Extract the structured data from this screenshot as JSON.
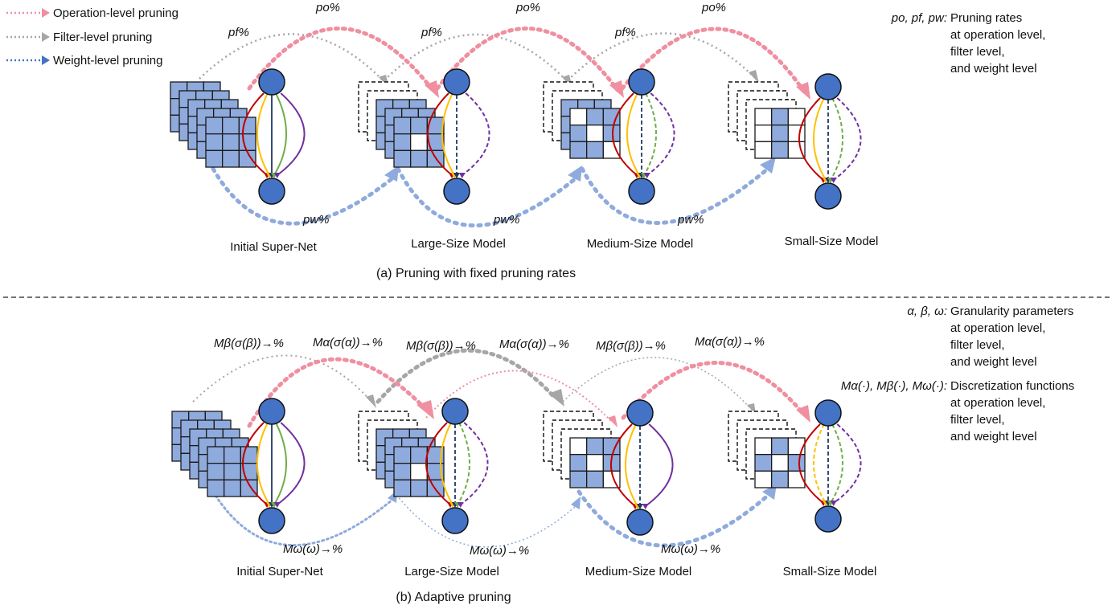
{
  "legend": [
    {
      "label": "Operation-level pruning",
      "color": "#ef8fa0"
    },
    {
      "label": "Filter-level pruning",
      "color": "#a6a6a6"
    },
    {
      "label": "Weight-level pruning",
      "color": "#4472c4"
    }
  ],
  "colors": {
    "cell": "#8faadc",
    "cell_border": "#1f1f1f",
    "node": "#4472c4",
    "op_arrow": "#ef8fa0",
    "filter_arrow": "#a6a6a6",
    "weight_arrow": "#8faadc",
    "edge_red": "#c00000",
    "edge_yellow": "#ffc000",
    "edge_navy": "#1f3864",
    "edge_green": "#70ad47",
    "edge_purple": "#7030a0"
  },
  "panel_a": {
    "caption": "(a) Pruning with fixed pruning rates",
    "models": [
      "Initial Super-Net",
      "Large-Size Model",
      "Medium-Size Model",
      "Small-Size Model"
    ],
    "filter_label": "pf%",
    "op_label": "po%",
    "weight_label": "pw%",
    "side_note": {
      "symbols": "po, pf, pw:",
      "lines": [
        "Pruning rates",
        "at operation level,",
        "filter level,",
        "and weight level"
      ]
    }
  },
  "panel_b": {
    "caption": "(b) Adaptive pruning",
    "models": [
      "Initial Super-Net",
      "Large-Size Model",
      "Medium-Size Model",
      "Small-Size Model"
    ],
    "filter_label": "Mβ(σ(β))→%",
    "op_label": "Mα(σ(α))→%",
    "weight_label": "Mω(ω)→%",
    "side_note_1": {
      "symbols": "α, β, ω:",
      "lines": [
        "Granularity parameters",
        "at operation level,",
        "filter level,",
        "and weight level"
      ]
    },
    "side_note_2": {
      "symbols": "Mα(·), Mβ(·), Mω(·):",
      "lines": [
        "Discretization functions",
        "at operation level,",
        "filter level,",
        "and weight level"
      ]
    }
  }
}
